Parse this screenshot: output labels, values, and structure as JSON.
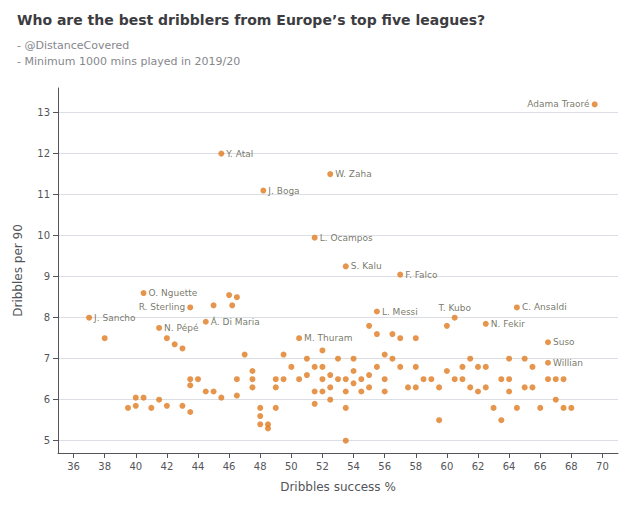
{
  "chart_data": {
    "type": "scatter",
    "title": "Who are the best dribblers from Europe’s top five leagues?",
    "subtitle": [
      "- @DistanceCovered",
      "- Minimum 1000 mins played in 2019/20"
    ],
    "xlabel": "Dribbles success %",
    "ylabel": "Dribbles per 90",
    "xlim": [
      35,
      71
    ],
    "ylim": [
      4.7,
      13.6
    ],
    "xticks": [
      36,
      38,
      40,
      42,
      44,
      46,
      48,
      50,
      52,
      54,
      56,
      58,
      60,
      62,
      64,
      66,
      68,
      70
    ],
    "yticks": [
      5,
      6,
      7,
      8,
      9,
      10,
      11,
      12,
      13
    ],
    "grid": true,
    "color": "#e07b20",
    "x": [
      69.5,
      45.5,
      52.5,
      48.2,
      51.5,
      53.5,
      57.0,
      40.5,
      43.5,
      64.5,
      37.0,
      41.5,
      44.5,
      55.5,
      60.5,
      62.5,
      50.5,
      66.5,
      66.5,
      46.0,
      45.0,
      46.2,
      46.5,
      38.0,
      42.5,
      42.0,
      43.0,
      39.5,
      40.0,
      40.0,
      40.5,
      41.0,
      41.5,
      42.0,
      43.0,
      43.5,
      43.5,
      43.5,
      44.0,
      44.5,
      45.0,
      45.5,
      46.5,
      46.5,
      47.0,
      47.5,
      47.5,
      47.5,
      48.0,
      48.0,
      48.0,
      48.5,
      48.5,
      49.0,
      49.0,
      49.0,
      49.5,
      49.5,
      50.0,
      50.5,
      51.0,
      51.0,
      51.5,
      51.5,
      51.5,
      52.0,
      52.0,
      52.0,
      52.0,
      52.5,
      52.5,
      52.5,
      53.0,
      53.0,
      53.5,
      53.5,
      53.5,
      53.5,
      54.0,
      54.0,
      54.0,
      54.5,
      54.5,
      55.0,
      55.0,
      55.0,
      55.5,
      55.5,
      56.0,
      56.0,
      56.0,
      56.5,
      56.5,
      57.0,
      57.0,
      57.5,
      58.0,
      58.0,
      58.0,
      58.5,
      59.0,
      59.5,
      59.5,
      60.0,
      60.0,
      60.5,
      61.0,
      61.0,
      61.5,
      61.5,
      62.0,
      62.0,
      62.5,
      62.5,
      63.0,
      63.5,
      63.5,
      64.0,
      64.0,
      64.0,
      64.5,
      65.0,
      65.0,
      65.5,
      65.5,
      66.0,
      66.5,
      67.0,
      67.0,
      67.5,
      67.5,
      68.0
    ],
    "values": [
      13.2,
      12.0,
      11.5,
      11.1,
      9.95,
      9.25,
      9.05,
      8.6,
      8.25,
      8.25,
      8.0,
      7.75,
      7.9,
      8.15,
      8.0,
      7.85,
      7.5,
      7.4,
      6.9,
      8.55,
      8.3,
      8.3,
      8.5,
      7.5,
      7.35,
      7.5,
      7.25,
      5.8,
      6.05,
      5.85,
      6.05,
      5.8,
      6.0,
      5.85,
      5.85,
      6.5,
      6.35,
      5.7,
      6.5,
      6.2,
      6.2,
      6.05,
      6.5,
      6.1,
      7.1,
      6.7,
      6.5,
      6.3,
      5.8,
      5.6,
      5.4,
      5.4,
      5.3,
      6.5,
      6.3,
      5.8,
      7.1,
      6.5,
      6.8,
      6.5,
      7.0,
      6.6,
      6.8,
      6.2,
      5.9,
      7.2,
      6.8,
      6.5,
      6.2,
      6.6,
      6.3,
      6.0,
      7.0,
      6.5,
      6.5,
      6.2,
      5.8,
      5.0,
      7.0,
      6.7,
      6.4,
      6.5,
      6.2,
      7.8,
      6.6,
      6.3,
      7.6,
      6.8,
      7.1,
      6.5,
      6.2,
      7.6,
      7.0,
      7.5,
      6.8,
      6.3,
      7.5,
      6.8,
      6.3,
      6.5,
      6.5,
      6.3,
      5.5,
      7.8,
      6.7,
      6.5,
      6.8,
      6.5,
      7.0,
      6.3,
      6.8,
      6.2,
      6.8,
      6.3,
      5.8,
      6.5,
      5.5,
      7.0,
      6.5,
      6.2,
      5.8,
      7.0,
      6.3,
      6.8,
      6.3,
      5.8,
      6.5,
      6.5,
      6.0,
      6.5,
      5.8,
      5.8
    ],
    "annotations": [
      {
        "text": "Adama Traoré",
        "x": 69.5,
        "y": 13.2
      },
      {
        "text": "Y. Atal",
        "x": 45.5,
        "y": 12.0
      },
      {
        "text": "W. Zaha",
        "x": 52.5,
        "y": 11.5
      },
      {
        "text": "J. Boga",
        "x": 48.2,
        "y": 11.1
      },
      {
        "text": "L. Ocampos",
        "x": 51.5,
        "y": 9.95
      },
      {
        "text": "S. Kalu",
        "x": 53.5,
        "y": 9.25
      },
      {
        "text": "F. Falco",
        "x": 57.0,
        "y": 9.05
      },
      {
        "text": "O. Nguette",
        "x": 40.5,
        "y": 8.6
      },
      {
        "text": "R. Sterling",
        "x": 43.5,
        "y": 8.25
      },
      {
        "text": "C. Ansaldi",
        "x": 64.5,
        "y": 8.25
      },
      {
        "text": "J. Sancho",
        "x": 37.0,
        "y": 8.0
      },
      {
        "text": "N. Pépé",
        "x": 41.5,
        "y": 7.75
      },
      {
        "text": "Á. Di Maria",
        "x": 44.5,
        "y": 7.9
      },
      {
        "text": "L. Messi",
        "x": 55.5,
        "y": 8.15
      },
      {
        "text": "T. Kubo",
        "x": 60.5,
        "y": 8.0
      },
      {
        "text": "N. Fekir",
        "x": 62.5,
        "y": 7.85
      },
      {
        "text": "M. Thuram",
        "x": 50.5,
        "y": 7.5
      },
      {
        "text": "Suso",
        "x": 66.5,
        "y": 7.4
      },
      {
        "text": "Willian",
        "x": 66.5,
        "y": 6.9
      }
    ]
  }
}
